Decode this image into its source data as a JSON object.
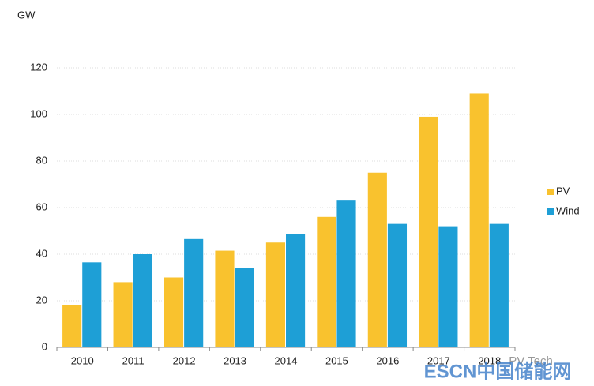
{
  "chart_data": {
    "type": "bar",
    "y_label": "GW",
    "categories": [
      "2010",
      "2011",
      "2012",
      "2013",
      "2014",
      "2015",
      "2016",
      "2017",
      "2018"
    ],
    "series": [
      {
        "name": "PV",
        "color": "#f9c22e",
        "values": [
          18,
          28,
          30,
          41.5,
          45,
          56,
          75,
          99,
          109
        ]
      },
      {
        "name": "Wind",
        "color": "#1e9fd6",
        "values": [
          36.5,
          40,
          46.5,
          34,
          48.5,
          63,
          53,
          52,
          53
        ]
      }
    ],
    "ylim": [
      0,
      120
    ],
    "yticks": [
      0,
      20,
      40,
      60,
      80,
      100,
      120
    ],
    "grid": true,
    "legend": "right",
    "watermark": [
      "PV Tech",
      "ESCN中国储能网"
    ]
  }
}
